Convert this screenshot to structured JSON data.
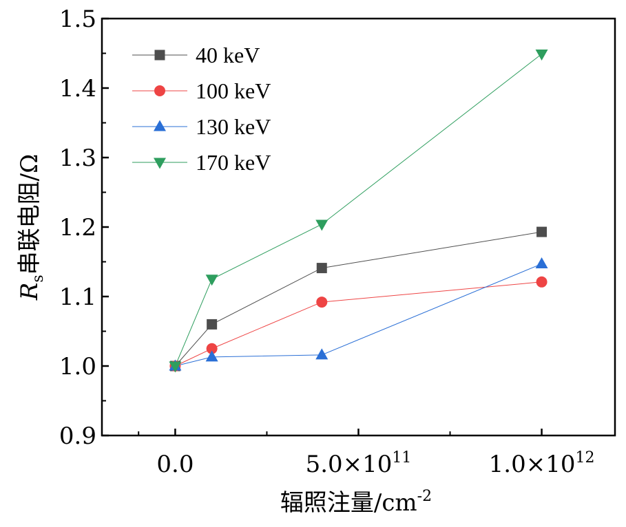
{
  "chart_data": {
    "type": "line",
    "title": "",
    "xlabel": "辐照注量/cm",
    "xlabel_superscript": "-2",
    "ylabel": "串联电阻/Ω",
    "ylabel_symbol": "R",
    "ylabel_subscript": "s",
    "xlim": [
      -200000000000.0,
      1200000000000.0
    ],
    "ylim": [
      0.9,
      1.5
    ],
    "x_ticks": [
      {
        "value": 0,
        "mantissa": "0.0",
        "exp": ""
      },
      {
        "value": 500000000000.0,
        "mantissa": "5.0×10",
        "exp": "11"
      },
      {
        "value": 1000000000000.0,
        "mantissa": "1.0×10",
        "exp": "12"
      }
    ],
    "x_minor_ticks": [
      -100000000000.0,
      250000000000.0,
      750000000000.0
    ],
    "y_ticks": [
      "0.9",
      "1.0",
      "1.1",
      "1.2",
      "1.3",
      "1.4",
      "1.5"
    ],
    "legend_position": "top-left",
    "x": [
      0,
      100000000000.0,
      400000000000.0,
      1000000000000.0
    ],
    "series": [
      {
        "name": "40 keV",
        "marker": "square",
        "color": "#4d4d4d",
        "values": [
          1.0,
          1.06,
          1.141,
          1.193
        ]
      },
      {
        "name": "100 keV",
        "marker": "circle",
        "color": "#ee4444",
        "values": [
          1.0,
          1.025,
          1.092,
          1.121
        ]
      },
      {
        "name": "130 keV",
        "marker": "triangle-up",
        "color": "#2a6fd6",
        "values": [
          1.0,
          1.013,
          1.016,
          1.147
        ]
      },
      {
        "name": "170 keV",
        "marker": "triangle-down",
        "color": "#2e9e5e",
        "values": [
          1.0,
          1.125,
          1.204,
          1.449
        ]
      }
    ]
  }
}
